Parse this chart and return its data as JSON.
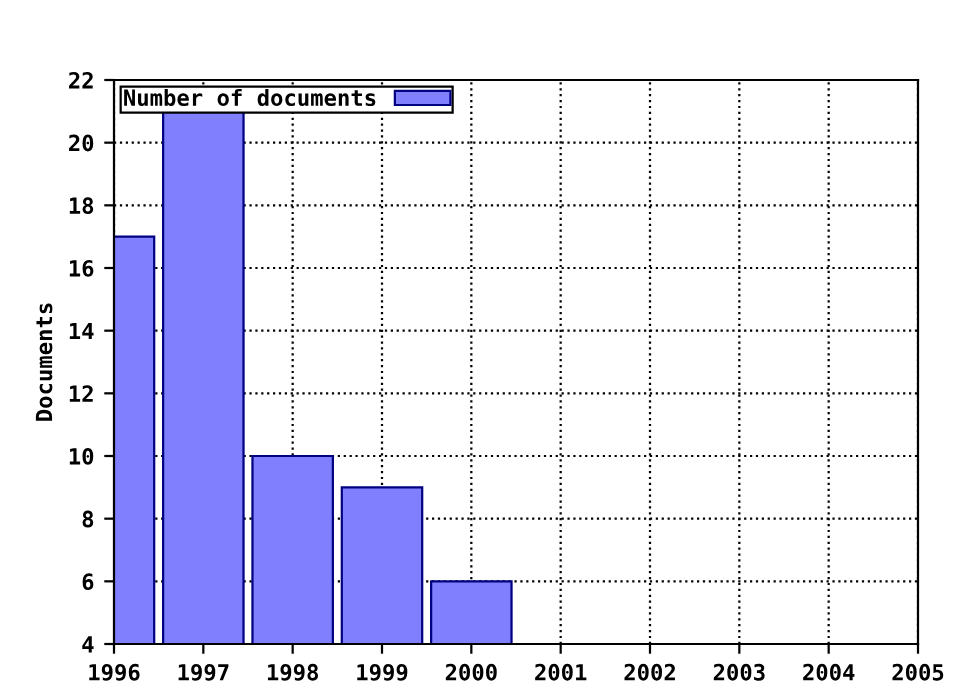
{
  "chart_data": {
    "type": "bar",
    "ylabel": "Documents",
    "x": [
      1996,
      1997,
      1998,
      1999,
      2000
    ],
    "series": [
      {
        "name": "Number of documents",
        "color": "#8080ff",
        "values": [
          17,
          21,
          10,
          9,
          6
        ]
      }
    ],
    "xlim": [
      1996,
      2005
    ],
    "xticks": [
      1996,
      1997,
      1998,
      1999,
      2000,
      2001,
      2002,
      2003,
      2004,
      2005
    ],
    "ylim": [
      4,
      22
    ],
    "yticks": [
      4,
      6,
      8,
      10,
      12,
      14,
      16,
      18,
      20,
      22
    ],
    "grid": true,
    "legend": "top left",
    "line_style": "dotted"
  }
}
